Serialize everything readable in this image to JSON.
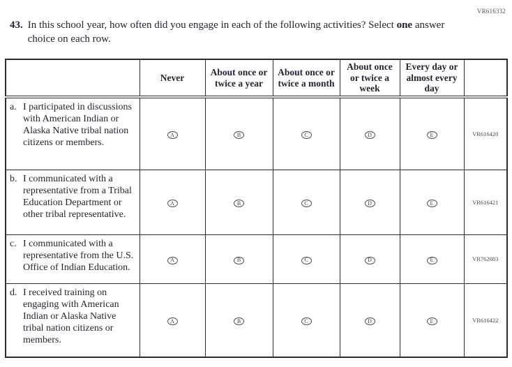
{
  "page_code": "VR616332",
  "colors": {
    "text": "#1f2430",
    "border": "#2b2b2f",
    "code_text": "#474752"
  },
  "question": {
    "number": "43.",
    "text_part1": "In this school year, how often did you engage in each of the following activities? Select",
    "bold_word": "one",
    "text_part2": "answer choice on each row."
  },
  "table": {
    "columns": [
      "Never",
      "About once or twice a year",
      "About once or twice a month",
      "About once or twice a week",
      "Every day or almost every day"
    ],
    "options": [
      "A",
      "B",
      "C",
      "D",
      "E"
    ],
    "rows": [
      {
        "label": "a.",
        "statement": "I participated in discussions with American Indian or Alaska Native tribal nation citizens or members.",
        "code": "VR616420"
      },
      {
        "label": "b.",
        "statement": "I communicated with a representative from a Tribal Education Department or other tribal representative.",
        "code": "VR616421"
      },
      {
        "label": "c.",
        "statement": "I communicated with a representative from the U.S. Office of Indian Education.",
        "code": "VR762083"
      },
      {
        "label": "d.",
        "statement": "I received training on engaging with American Indian or Alaska Native tribal nation citizens or members.",
        "code": "VR616422"
      }
    ]
  }
}
